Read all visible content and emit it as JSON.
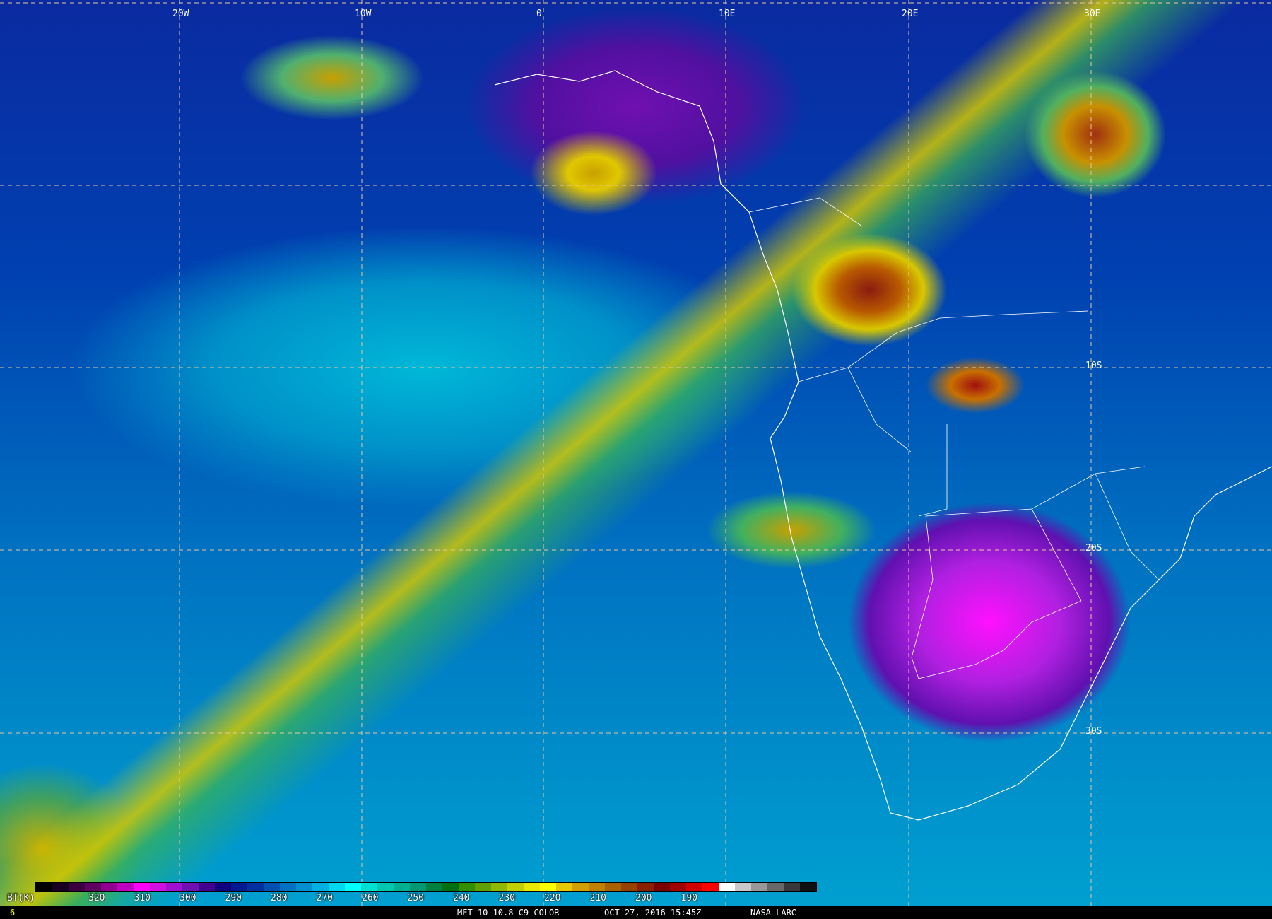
{
  "map": {
    "longitude_labels": [
      "20W",
      "10W",
      "0",
      "10E",
      "20E",
      "30E"
    ],
    "latitude_labels": [
      "10S",
      "20S",
      "30S"
    ]
  },
  "colorbar": {
    "unit_label": "BT(K)",
    "ticks": [
      "320",
      "310",
      "300",
      "290",
      "280",
      "270",
      "260",
      "250",
      "240",
      "230",
      "220",
      "210",
      "200",
      "190"
    ],
    "colors": [
      "#000000",
      "#1a0020",
      "#3a0040",
      "#600060",
      "#900090",
      "#c000c0",
      "#ff00ff",
      "#d010e0",
      "#a010d0",
      "#7010b0",
      "#400090",
      "#100080",
      "#001890",
      "#0030a0",
      "#0050b0",
      "#0070c0",
      "#0090d0",
      "#00b0e0",
      "#00d8f0",
      "#00ffff",
      "#00e0d0",
      "#00c8b0",
      "#00b090",
      "#009870",
      "#008040",
      "#007010",
      "#309000",
      "#60a000",
      "#90b800",
      "#c0d000",
      "#e8e800",
      "#ffff00",
      "#e8c800",
      "#d0a000",
      "#c08000",
      "#a86000",
      "#984000",
      "#882000",
      "#780000",
      "#a00000",
      "#d00000",
      "#ff0000",
      "#ffffff",
      "#c8c8c8",
      "#989898",
      "#686868",
      "#383838",
      "#101010"
    ]
  },
  "footer": {
    "left_number": "6",
    "product": "MET-10 10.8 C9 COLOR",
    "datetime": "OCT 27, 2016 15:45Z",
    "source": "NASA LARC"
  },
  "colors": {
    "grid": "#e8c8a0",
    "borders": "#ffffff",
    "footer_number": "#ffff00"
  }
}
